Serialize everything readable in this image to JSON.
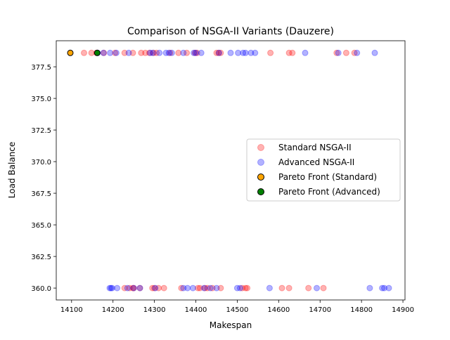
{
  "chart_data": {
    "type": "scatter",
    "title": "Comparison of NSGA-II Variants (Dauzere)",
    "xlabel": "Makespan",
    "ylabel": "Load Balance",
    "xlim": [
      14063,
      14905
    ],
    "ylim": [
      359.06,
      379.56
    ],
    "xticks": [
      14100,
      14200,
      14300,
      14400,
      14500,
      14600,
      14700,
      14800,
      14900
    ],
    "yticks": [
      360.0,
      362.5,
      365.0,
      367.5,
      370.0,
      372.5,
      375.0,
      377.5
    ],
    "grid": false,
    "legend_position": "center right",
    "series": [
      {
        "name": "Standard NSGA-II",
        "color": "#ff0000",
        "alpha": 0.3,
        "points": [
          [
            14130,
            378.6
          ],
          [
            14148,
            378.6
          ],
          [
            14160,
            378.6
          ],
          [
            14178,
            378.6
          ],
          [
            14205,
            378.6
          ],
          [
            14228,
            378.6
          ],
          [
            14248,
            378.6
          ],
          [
            14268,
            378.6
          ],
          [
            14278,
            378.6
          ],
          [
            14288,
            378.6
          ],
          [
            14298,
            378.6
          ],
          [
            14305,
            378.6
          ],
          [
            14338,
            378.6
          ],
          [
            14358,
            378.6
          ],
          [
            14378,
            378.6
          ],
          [
            14398,
            378.6
          ],
          [
            14403,
            378.6
          ],
          [
            14450,
            378.6
          ],
          [
            14455,
            378.6
          ],
          [
            14460,
            378.6
          ],
          [
            14580,
            378.6
          ],
          [
            14625,
            378.6
          ],
          [
            14633,
            378.6
          ],
          [
            14740,
            378.6
          ],
          [
            14763,
            378.6
          ],
          [
            14783,
            378.6
          ],
          [
            14228,
            360.0
          ],
          [
            14240,
            360.0
          ],
          [
            14248,
            360.0
          ],
          [
            14250,
            360.0
          ],
          [
            14265,
            360.0
          ],
          [
            14295,
            360.0
          ],
          [
            14300,
            360.0
          ],
          [
            14310,
            360.0
          ],
          [
            14323,
            360.0
          ],
          [
            14365,
            360.0
          ],
          [
            14405,
            360.0
          ],
          [
            14410,
            360.0
          ],
          [
            14422,
            360.0
          ],
          [
            14428,
            360.0
          ],
          [
            14440,
            360.0
          ],
          [
            14460,
            360.0
          ],
          [
            14512,
            360.0
          ],
          [
            14520,
            360.0
          ],
          [
            14524,
            360.0
          ],
          [
            14608,
            360.0
          ],
          [
            14625,
            360.0
          ],
          [
            14672,
            360.0
          ],
          [
            14708,
            360.0
          ]
        ]
      },
      {
        "name": "Advanced NSGA-II",
        "color": "#0000ff",
        "alpha": 0.3,
        "points": [
          [
            14163,
            378.6
          ],
          [
            14177,
            378.6
          ],
          [
            14193,
            378.6
          ],
          [
            14208,
            378.6
          ],
          [
            14238,
            378.6
          ],
          [
            14290,
            378.6
          ],
          [
            14296,
            378.6
          ],
          [
            14312,
            378.6
          ],
          [
            14328,
            378.6
          ],
          [
            14335,
            378.6
          ],
          [
            14342,
            378.6
          ],
          [
            14370,
            378.6
          ],
          [
            14395,
            378.6
          ],
          [
            14400,
            378.6
          ],
          [
            14413,
            378.6
          ],
          [
            14456,
            378.6
          ],
          [
            14484,
            378.6
          ],
          [
            14502,
            378.6
          ],
          [
            14514,
            378.6
          ],
          [
            14520,
            378.6
          ],
          [
            14533,
            378.6
          ],
          [
            14543,
            378.6
          ],
          [
            14664,
            378.6
          ],
          [
            14744,
            378.6
          ],
          [
            14789,
            378.6
          ],
          [
            14832,
            378.6
          ],
          [
            14192,
            360.0
          ],
          [
            14195,
            360.0
          ],
          [
            14198,
            360.0
          ],
          [
            14210,
            360.0
          ],
          [
            14235,
            360.0
          ],
          [
            14250,
            360.0
          ],
          [
            14265,
            360.0
          ],
          [
            14302,
            360.0
          ],
          [
            14370,
            360.0
          ],
          [
            14380,
            360.0
          ],
          [
            14393,
            360.0
          ],
          [
            14420,
            360.0
          ],
          [
            14435,
            360.0
          ],
          [
            14450,
            360.0
          ],
          [
            14500,
            360.0
          ],
          [
            14507,
            360.0
          ],
          [
            14578,
            360.0
          ],
          [
            14692,
            360.0
          ],
          [
            14820,
            360.0
          ],
          [
            14850,
            360.0
          ],
          [
            14855,
            360.0
          ],
          [
            14866,
            360.0
          ]
        ]
      },
      {
        "name": "Pareto Front (Standard)",
        "color": "#ffa500",
        "points": [
          [
            14097,
            378.6
          ]
        ]
      },
      {
        "name": "Pareto Front (Advanced)",
        "color": "#008000",
        "points": [
          [
            14162,
            378.6
          ]
        ]
      }
    ]
  }
}
